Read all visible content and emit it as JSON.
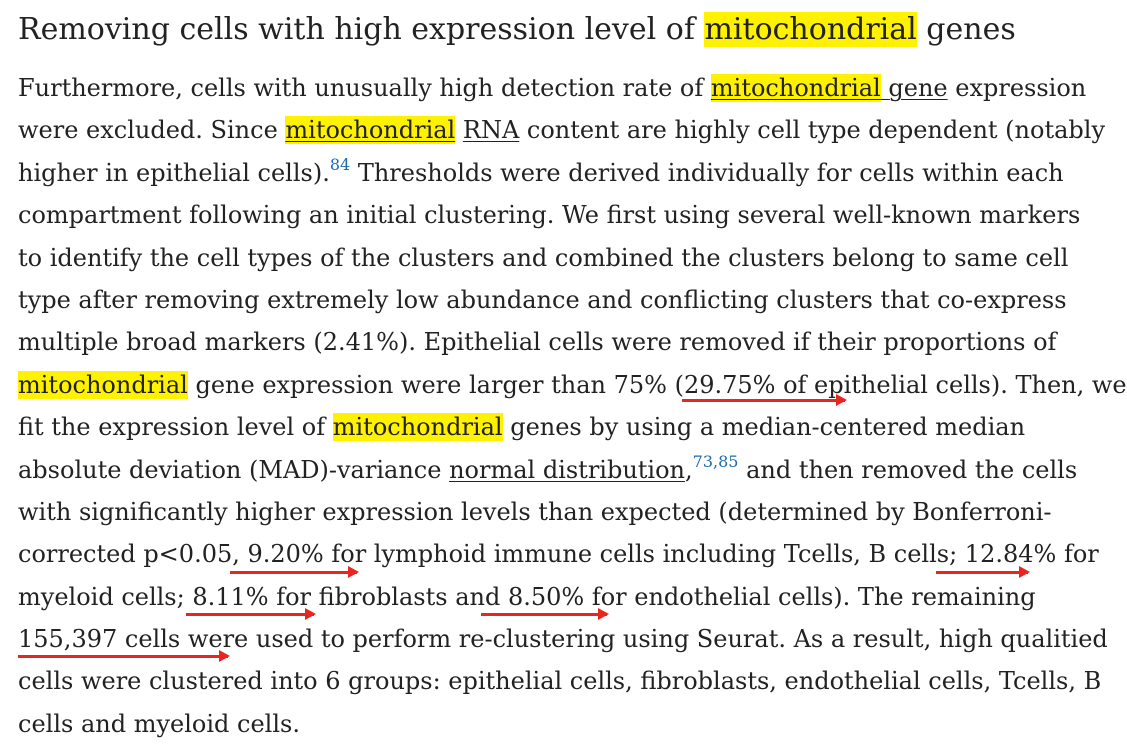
{
  "heading": {
    "pre": "Removing cells with high expression level of ",
    "highlight": "mitochondrial",
    "post": " genes"
  },
  "paragraph": {
    "l1": {
      "a": "Furthermore, cells with unusually high detection rate of ",
      "hl": "mitochondrial",
      "b": " ",
      "link": "gene",
      "c": " expression"
    },
    "l2": {
      "a": "were excluded. Since ",
      "hl": "mitochondrial",
      "b": " ",
      "link": "RNA",
      "c": " content are highly cell type dependent (notably"
    },
    "l3": {
      "a": "higher in epithelial cells).",
      "ref": "84",
      "b": " Thresholds were derived individually for cells within each"
    },
    "l4": "compartment following an initial clustering. We first using several well-known markers",
    "l5": "to identify the cell types of the clusters and combined the clusters belong to same cell",
    "l6": "type after removing extremely low abundance and conflicting clusters that co-express",
    "l7": "multiple broad markers (2.41%). Epithelial cells were removed if their proportions of",
    "l8": {
      "hl": "mitochondrial",
      "b": " gene expression were larger than 75% (29.75% of epithelial cells). Then, we"
    },
    "l9": {
      "a": "fit the expression level of ",
      "hl": "mitochondrial",
      "b": " genes by using a median-centered median"
    },
    "l10": {
      "a": "absolute deviation (MAD)-variance ",
      "link": "normal distribution",
      "b": ",",
      "ref": "73,85",
      "c": " and then removed the cells"
    },
    "l11": "with significantly higher expression levels than expected (determined by Bonferroni-",
    "l12": "corrected p<0.05, 9.20% for lymphoid immune cells including Tcells, B cells; 12.84% for",
    "l13": "myeloid cells; 8.11% for fibroblasts and 8.50% for endothelial cells). The remaining",
    "l14": "155,397 cells were used to perform re-clustering using Seurat. As a result, high qualitied",
    "l15": "cells were clustered into 6 groups: epithelial cells, fibroblasts, endothelial cells, Tcells, B",
    "l16": "cells and myeloid cells."
  },
  "colors": {
    "highlight": "#fff200",
    "annotation_arrow": "#e8261f",
    "reference_link": "#1a6bb0",
    "text": "#222222"
  }
}
